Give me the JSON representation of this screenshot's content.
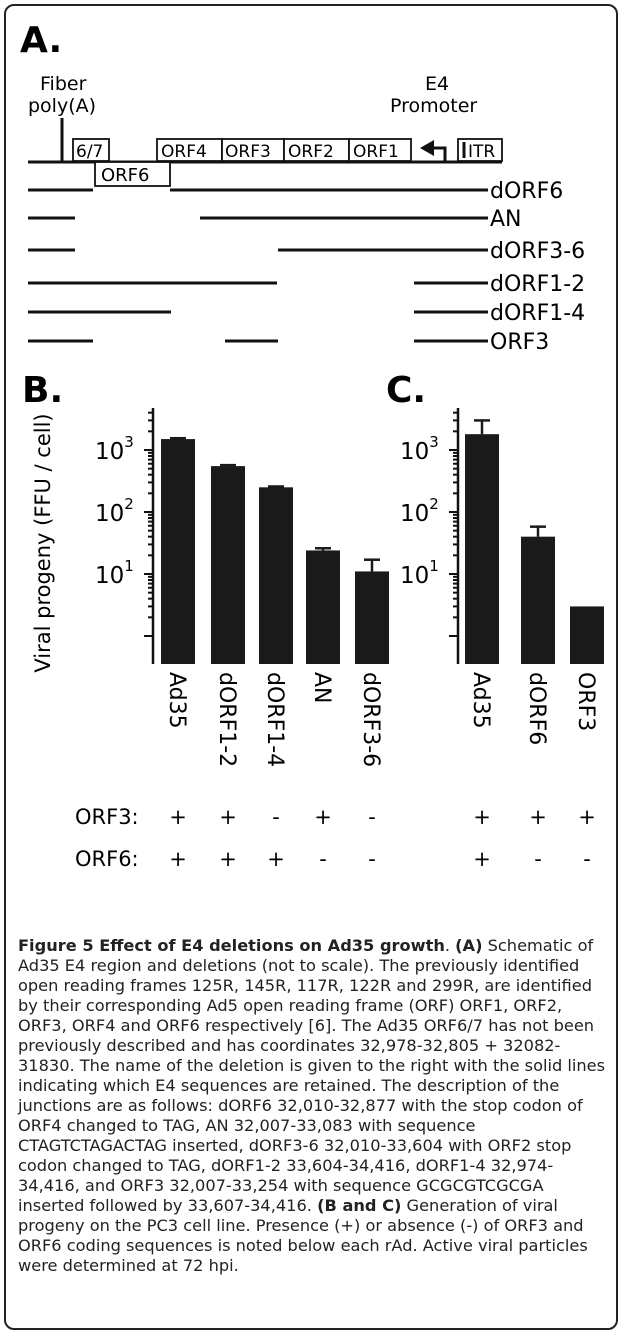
{
  "panels": {
    "a": "A.",
    "b": "B.",
    "c": "C."
  },
  "schematic": {
    "fiber_label_1": "Fiber",
    "fiber_label_2": "poly(A)",
    "promoter_label_1": "E4",
    "promoter_label_2": "Promoter",
    "boxes": [
      "6/7",
      "ORF6",
      "ORF4",
      "ORF3",
      "ORF2",
      "ORF1",
      "ITR"
    ],
    "deletions": [
      "dORF6",
      "AN",
      "dORF3-6",
      "dORF1-2",
      "dORF1-4",
      "ORF3"
    ]
  },
  "chart_data": [
    {
      "type": "bar",
      "panel": "B.",
      "ylabel": "Viral progeny (FFU / cell)",
      "yscale": "log",
      "ylim": [
        1,
        10000
      ],
      "yticks": [
        "10^1",
        "10^2",
        "10^3"
      ],
      "categories": [
        "Ad35",
        "dORF1-2",
        "dORF1-4",
        "AN",
        "dORF3-6"
      ],
      "values": [
        1500,
        550,
        250,
        24,
        11
      ],
      "error_upper": [
        1550,
        570,
        258,
        26,
        17
      ]
    },
    {
      "type": "bar",
      "panel": "C.",
      "yscale": "log",
      "ylim": [
        1,
        10000
      ],
      "yticks": [
        "10^1",
        "10^2",
        "10^3"
      ],
      "categories": [
        "Ad35",
        "dORF6",
        "ORF3"
      ],
      "values": [
        1800,
        40,
        3
      ],
      "error_upper": [
        3000,
        58,
        3
      ]
    }
  ],
  "presence": {
    "orf3_label": "ORF3:",
    "orf6_label": "ORF6:",
    "b_orf3": [
      "+",
      "+",
      "-",
      "+",
      "-"
    ],
    "b_orf6": [
      "+",
      "+",
      "+",
      "-",
      "-"
    ],
    "c_orf3": [
      "+",
      "+",
      "+"
    ],
    "c_orf6": [
      "+",
      "-",
      "-"
    ]
  },
  "caption": {
    "title": "Figure 5 Effect of E4 deletions on Ad35 growth",
    "a_tag": "(A)",
    "a_text": " Schematic of Ad35 E4 region and deletions (not to scale). The previously identified open reading frames 125R, 145R, 117R, 122R and 299R, are identified by their corresponding Ad5 open reading frame (ORF) ORF1, ORF2, ORF3, ORF4 and ORF6 respectively [6]. The Ad35 ORF6/7 has not been previously described and has coordinates 32,978-32,805 + 32082-31830. The name of the deletion is given to the right with the solid lines indicating which E4 sequences are retained. The description of the junctions are as follows: dORF6 32,010-32,877 with the stop codon of ORF4 changed to TAG, AN 32,007-33,083 with sequence CTAGTCTAGACTAG inserted, dORF3-6 32,010-33,604 with ORF2 stop codon changed to TAG, dORF1-2 33,604-34,416, dORF1-4 32,974-34,416, and ORF3 32,007-33,254 with sequence GCGCGTCGCGA inserted followed by 33,607-34,416.",
    "bc_tag": "(B and C)",
    "bc_text": " Generation of viral progeny on the PC3 cell line. Presence (+) or absence (-) of ORF3 and ORF6 coding sequences is noted below each rAd. Active viral particles were determined at 72 hpi."
  }
}
